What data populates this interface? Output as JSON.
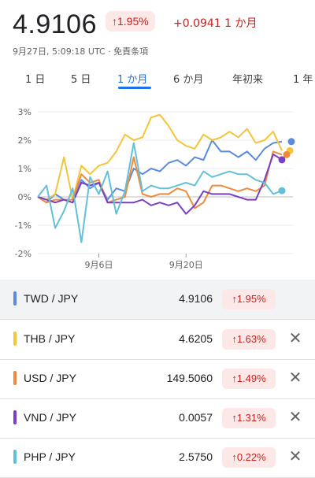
{
  "header": {
    "price": "4.9106",
    "change_percent": "↑1.95%",
    "change_abs": "+0.0941 1 か月",
    "meta": "9月27日, 5:09:18 UTC · 免責条項"
  },
  "tabs": [
    "1 日",
    "5 日",
    "1 か月",
    "6 か月",
    "年初来",
    "1 年"
  ],
  "active_tab": "1 か月",
  "colors": {
    "TWD": "#5b8ae0",
    "THB": "#f2c53a",
    "USD": "#ed8a3c",
    "VND": "#7a3fc4",
    "PHP": "#62c0d8",
    "up": "#c5221f",
    "up_bg": "#fce8e6"
  },
  "chart_data": {
    "type": "line",
    "yticks": [
      "3%",
      "2%",
      "1%",
      "0%",
      "-1%",
      "-2%"
    ],
    "xticks": [
      "9月6日",
      "9月20日"
    ],
    "ylim": [
      -2,
      3
    ],
    "x_count": 29,
    "series": [
      {
        "name": "TWD / JPY",
        "color": "#5b8ae0",
        "values": [
          0,
          -0.2,
          0.1,
          -0.1,
          -0.2,
          0.6,
          0.3,
          0.5,
          -0.1,
          0.3,
          0.2,
          1.0,
          0.8,
          1.0,
          0.9,
          1.2,
          1.3,
          1.1,
          1.4,
          1.3,
          2.0,
          1.6,
          1.6,
          1.4,
          1.6,
          1.3,
          1.7,
          1.9,
          1.95
        ]
      },
      {
        "name": "THB / JPY",
        "color": "#f2c53a",
        "values": [
          0,
          -0.1,
          0.1,
          1.4,
          -0.1,
          1.1,
          0.8,
          1.1,
          1.2,
          1.6,
          2.2,
          2.0,
          2.1,
          2.8,
          2.9,
          2.5,
          2.0,
          1.8,
          1.7,
          2.2,
          2.0,
          2.1,
          2.3,
          2.1,
          2.4,
          1.9,
          2.0,
          2.3,
          1.63
        ]
      },
      {
        "name": "USD / JPY",
        "color": "#ed8a3c",
        "values": [
          0,
          -0.2,
          -0.1,
          -0.1,
          -0.1,
          0.8,
          0.5,
          0.6,
          -0.2,
          -0.1,
          0,
          1.4,
          0.1,
          0,
          0.1,
          0.1,
          0.3,
          0.2,
          -0.4,
          -0.2,
          0.4,
          0.4,
          0.3,
          0.2,
          0.3,
          0.2,
          0.4,
          1.6,
          1.49
        ]
      },
      {
        "name": "VND / JPY",
        "color": "#7a3fc4",
        "values": [
          0,
          -0.1,
          -0.2,
          -0.1,
          -0.2,
          0.5,
          0.4,
          0.5,
          -0.2,
          -0.2,
          -0.2,
          -0.2,
          -0.1,
          -0.3,
          -0.2,
          -0.3,
          -0.2,
          -0.6,
          -0.3,
          0.2,
          0.1,
          0.1,
          0.1,
          0,
          -0.1,
          -0.1,
          0.6,
          1.5,
          1.31
        ]
      },
      {
        "name": "PHP / JPY",
        "color": "#62c0d8",
        "values": [
          0,
          0.4,
          -1.1,
          -0.5,
          0.3,
          -1.6,
          0.7,
          0.1,
          0.9,
          -0.6,
          0.2,
          1.9,
          0.2,
          0.4,
          0.3,
          0.3,
          0.4,
          0.5,
          0.4,
          0.9,
          0.7,
          0.8,
          0.9,
          0.8,
          0.8,
          0.6,
          0.5,
          0.1,
          0.22
        ]
      }
    ]
  },
  "rows": [
    {
      "pair": "TWD / JPY",
      "value": "4.9106",
      "change": "↑1.95%",
      "removable": false
    },
    {
      "pair": "THB / JPY",
      "value": "4.6205",
      "change": "↑1.63%",
      "removable": true
    },
    {
      "pair": "USD / JPY",
      "value": "149.5060",
      "change": "↑1.49%",
      "removable": true
    },
    {
      "pair": "VND / JPY",
      "value": "0.0057",
      "change": "↑1.31%",
      "removable": true
    },
    {
      "pair": "PHP / JPY",
      "value": "2.5750",
      "change": "↑0.22%",
      "removable": true
    }
  ],
  "remove_glyph": "✕"
}
